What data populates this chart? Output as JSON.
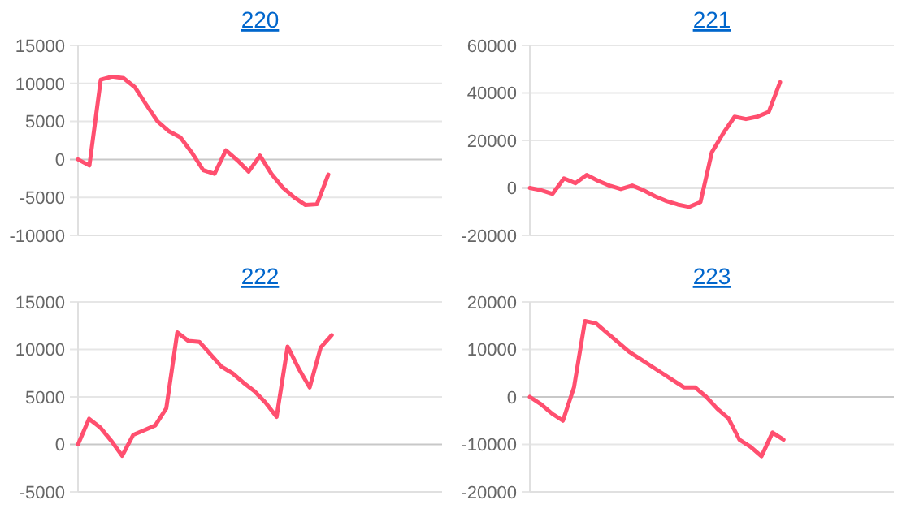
{
  "chart_data": [
    {
      "type": "line",
      "title": "220",
      "categories": [
        null,
        null,
        null,
        null,
        null,
        null,
        null,
        null,
        null,
        null,
        null,
        null,
        null,
        null,
        null,
        null,
        null,
        null,
        null,
        null,
        null,
        null,
        null,
        null,
        null,
        null,
        null,
        null,
        null,
        null,
        null,
        null,
        null
      ],
      "series": [
        {
          "color": "#ff4f6f",
          "values": [
            0,
            -800,
            10500,
            10900,
            10700,
            9500,
            7200,
            5000,
            3700,
            2900,
            900,
            -1400,
            -1900,
            1200,
            -100,
            -1600,
            500,
            -1900,
            -3700,
            -5000,
            -6000,
            -5900,
            -2000,
            null,
            null,
            null,
            null,
            null,
            null,
            null,
            null,
            null,
            null
          ]
        }
      ],
      "ylim": [
        -10000,
        15000
      ],
      "yticks": [
        -10000,
        -5000,
        0,
        5000,
        10000,
        15000
      ],
      "grid": "y",
      "tick_labels": "y",
      "marker": "none"
    },
    {
      "type": "line",
      "title": "221",
      "categories": [
        null,
        null,
        null,
        null,
        null,
        null,
        null,
        null,
        null,
        null,
        null,
        null,
        null,
        null,
        null,
        null,
        null,
        null,
        null,
        null,
        null,
        null,
        null,
        null,
        null,
        null,
        null,
        null,
        null,
        null,
        null,
        null,
        null
      ],
      "series": [
        {
          "color": "#ff4f6f",
          "values": [
            0,
            -1000,
            -2500,
            4000,
            2000,
            5500,
            3000,
            1000,
            -500,
            1000,
            -1000,
            -3500,
            -5500,
            -7000,
            -8000,
            -6000,
            15000,
            23000,
            30000,
            29000,
            30000,
            32000,
            44500,
            null,
            null,
            null,
            null,
            null,
            null,
            null,
            null,
            null,
            null
          ]
        }
      ],
      "ylim": [
        -20000,
        60000
      ],
      "yticks": [
        -20000,
        0,
        20000,
        40000,
        60000
      ],
      "grid": "y",
      "tick_labels": "y",
      "marker": "none"
    },
    {
      "type": "line",
      "title": "222",
      "categories": [
        null,
        null,
        null,
        null,
        null,
        null,
        null,
        null,
        null,
        null,
        null,
        null,
        null,
        null,
        null,
        null,
        null,
        null,
        null,
        null,
        null,
        null,
        null,
        null,
        null,
        null,
        null,
        null,
        null,
        null,
        null,
        null,
        null,
        null
      ],
      "series": [
        {
          "color": "#ff4f6f",
          "values": [
            0,
            2700,
            1800,
            400,
            -1200,
            1000,
            1500,
            2000,
            3800,
            11800,
            10900,
            10800,
            9500,
            8200,
            7500,
            6500,
            5600,
            4400,
            2900,
            10300,
            8000,
            6000,
            10200,
            11500,
            null,
            null,
            null,
            null,
            null,
            null,
            null,
            null,
            null,
            null
          ]
        }
      ],
      "ylim": [
        -5000,
        15000
      ],
      "yticks": [
        -5000,
        0,
        5000,
        10000,
        15000
      ],
      "grid": "y",
      "tick_labels": "y",
      "marker": "none"
    },
    {
      "type": "line",
      "title": "223",
      "categories": [
        null,
        null,
        null,
        null,
        null,
        null,
        null,
        null,
        null,
        null,
        null,
        null,
        null,
        null,
        null,
        null,
        null,
        null,
        null,
        null,
        null,
        null,
        null,
        null,
        null,
        null,
        null,
        null,
        null,
        null,
        null,
        null,
        null,
        null
      ],
      "series": [
        {
          "color": "#ff4f6f",
          "values": [
            0,
            -1500,
            -3500,
            -5000,
            2000,
            16000,
            15500,
            13500,
            11500,
            9500,
            8000,
            6500,
            5000,
            3500,
            2000,
            2000,
            0,
            -2500,
            -4500,
            -9000,
            -10500,
            -12500,
            -7500,
            -9000,
            null,
            null,
            null,
            null,
            null,
            null,
            null,
            null,
            null,
            null
          ]
        }
      ],
      "ylim": [
        -20000,
        20000
      ],
      "yticks": [
        -20000,
        -10000,
        0,
        10000,
        20000
      ],
      "grid": "y",
      "tick_labels": "y",
      "marker": "none"
    }
  ]
}
